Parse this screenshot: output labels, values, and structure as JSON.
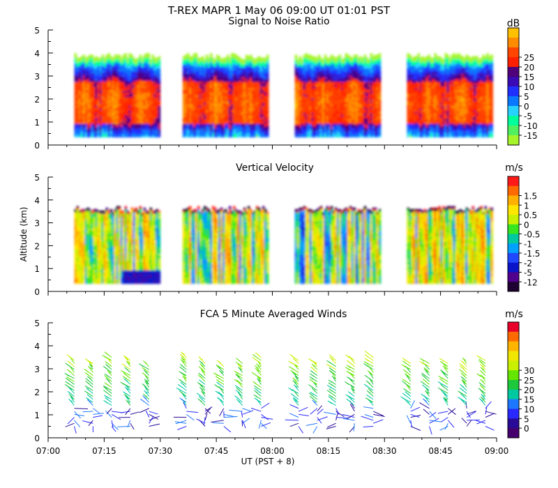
{
  "header": "T-REX   MAPR   1 May 06   09:00 UT   01:01   PST",
  "x_axis": {
    "label": "UT  (PST + 8)",
    "ticks": [
      "07:00",
      "07:15",
      "07:30",
      "07:45",
      "08:00",
      "08:15",
      "08:30",
      "08:45",
      "09:00"
    ],
    "range_hours": [
      7.0,
      9.0
    ]
  },
  "y_axis_label": "Altitude (km)",
  "chart_data": [
    {
      "type": "heatmap",
      "title": "Signal to Noise Ratio",
      "unit": "dB",
      "ylim": [
        0,
        5
      ],
      "yticks": [
        "0",
        "1",
        "2",
        "3",
        "4",
        "5"
      ],
      "colorbar": {
        "labels": [
          "25",
          "20",
          "15",
          "10",
          "5",
          "0",
          "-5",
          "-10",
          "-15"
        ],
        "colors": [
          "#ffc000",
          "#ff8c00",
          "#ff4500",
          "#ff2000",
          "#500078",
          "#3a0ab4",
          "#2030ff",
          "#0a78ff",
          "#28d2ff",
          "#00ff9a",
          "#50f060",
          "#a6f52a"
        ]
      },
      "segments": [
        {
          "start": "07:07",
          "end": "07:30"
        },
        {
          "start": "07:36",
          "end": "07:59"
        },
        {
          "start": "08:06",
          "end": "08:29"
        },
        {
          "start": "08:36",
          "end": "08:59"
        }
      ],
      "altitude_range_km": [
        0.35,
        3.85
      ],
      "description_values": {
        "core_snr_db": [
          15,
          25
        ],
        "core_altitude_km": [
          1,
          3
        ]
      }
    },
    {
      "type": "heatmap",
      "title": "Vertical Velocity",
      "unit": "m/s",
      "ylim": [
        0,
        5
      ],
      "yticks": [
        "0",
        "1",
        "2",
        "3",
        "4",
        "5"
      ],
      "colorbar": {
        "labels": [
          "1.5",
          "1",
          "0.5",
          "0",
          "-0.5",
          "-1",
          "-1.5",
          "-2",
          "-5",
          "-12"
        ],
        "colors": [
          "#ff1a1a",
          "#ff6a00",
          "#ffb000",
          "#ffe600",
          "#c8f000",
          "#36e61e",
          "#00c8a0",
          "#00a0ff",
          "#1f48ff",
          "#0a14c8",
          "#50008c",
          "#1e0032"
        ]
      },
      "segments": [
        {
          "start": "07:07",
          "end": "07:30"
        },
        {
          "start": "07:36",
          "end": "07:59"
        },
        {
          "start": "08:06",
          "end": "08:29"
        },
        {
          "start": "08:36",
          "end": "08:59"
        }
      ],
      "altitude_range_km": [
        0.35,
        3.7
      ]
    },
    {
      "type": "scatter",
      "title": "FCA 5 Minute Averaged Winds",
      "unit": "m/s",
      "ylim": [
        0,
        5
      ],
      "yticks": [
        "0",
        "1",
        "2",
        "3",
        "4",
        "5"
      ],
      "colorbar": {
        "labels": [
          "30",
          "25",
          "20",
          "15",
          "10",
          "5",
          "0"
        ],
        "colors": [
          "#e8002a",
          "#ff6a00",
          "#ffb400",
          "#f0e600",
          "#c8f000",
          "#64e600",
          "#1ec83c",
          "#00c8a0",
          "#1e78ff",
          "#2828ff",
          "#280a96",
          "#46006e"
        ]
      },
      "columns_ut": [
        "07:07",
        "07:12",
        "07:17",
        "07:22",
        "07:27",
        "07:37",
        "07:42",
        "07:47",
        "07:52",
        "07:57",
        "08:07",
        "08:12",
        "08:17",
        "08:22",
        "08:27",
        "08:37",
        "08:42",
        "08:47",
        "08:52",
        "08:57"
      ],
      "altitude_range_km": [
        0.5,
        3.6
      ]
    }
  ]
}
